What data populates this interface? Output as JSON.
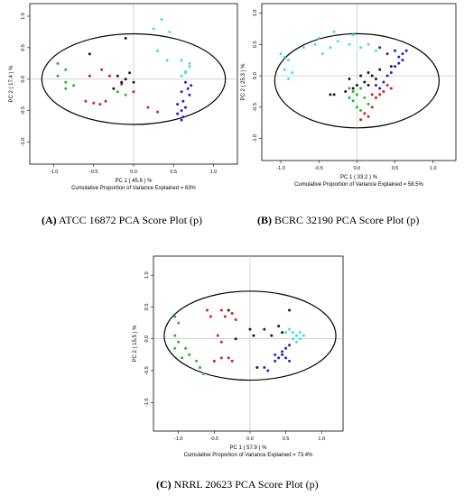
{
  "colors": {
    "black": "#1a1a1a",
    "red": "#e31a1c",
    "green": "#22bb22",
    "blue": "#2222cc",
    "cyan": "#44ddee"
  },
  "chart_data": [
    {
      "type": "scatter",
      "caption": {
        "letter": "(A)",
        "text": " ATCC 16872 PCA Score Plot (p)"
      },
      "xlabel": "PC 1  ( 45.6 ) %",
      "ylabel": "PC 2  ( 17.4 ) %",
      "variance_text": "Cumulative Proportion of Variance Explained = 63%",
      "xlim": [
        -1.3,
        1.3
      ],
      "ylim": [
        -1.35,
        1.2
      ],
      "xticks": [
        -1.0,
        -0.5,
        0.0,
        0.5,
        1.0
      ],
      "yticks": [
        -1.0,
        -0.5,
        0.0,
        0.5,
        1.0
      ],
      "ellipse": {
        "cx": 0.0,
        "cy": 0.0,
        "rx": 1.15,
        "ry": 0.72
      },
      "series": [
        {
          "color": "green",
          "points": [
            [
              -0.95,
              0.25
            ],
            [
              -0.85,
              0.15
            ],
            [
              -0.95,
              0.05
            ],
            [
              -0.85,
              -0.05
            ],
            [
              -0.75,
              -0.1
            ],
            [
              -0.85,
              -0.15
            ],
            [
              -0.2,
              -0.2
            ],
            [
              -0.1,
              -0.25
            ]
          ]
        },
        {
          "color": "red",
          "points": [
            [
              -0.6,
              -0.35
            ],
            [
              -0.5,
              -0.38
            ],
            [
              -0.42,
              -0.4
            ],
            [
              -0.35,
              -0.35
            ],
            [
              -0.4,
              0.15
            ],
            [
              -0.3,
              0.05
            ],
            [
              -0.15,
              -0.08
            ],
            [
              0.0,
              -0.2
            ],
            [
              0.18,
              -0.45
            ],
            [
              0.3,
              -0.52
            ],
            [
              -0.55,
              0.05
            ]
          ]
        },
        {
          "color": "black",
          "points": [
            [
              -0.55,
              0.4
            ],
            [
              -0.1,
              0.65
            ],
            [
              -0.1,
              0.0
            ],
            [
              -0.2,
              0.05
            ],
            [
              -0.15,
              -0.05
            ],
            [
              -0.05,
              0.1
            ],
            [
              0.0,
              -0.05
            ],
            [
              -0.25,
              -0.15
            ]
          ]
        },
        {
          "color": "cyan",
          "points": [
            [
              0.25,
              0.8
            ],
            [
              0.35,
              0.95
            ],
            [
              0.45,
              0.75
            ],
            [
              0.3,
              0.45
            ],
            [
              0.42,
              0.3
            ],
            [
              0.6,
              0.3
            ],
            [
              0.7,
              0.2
            ],
            [
              0.6,
              0.05
            ],
            [
              0.65,
              0.1
            ],
            [
              0.7,
              0.25
            ],
            [
              0.65,
              0.12
            ]
          ]
        },
        {
          "color": "blue",
          "points": [
            [
              0.65,
              -0.05
            ],
            [
              0.72,
              -0.1
            ],
            [
              0.68,
              -0.15
            ],
            [
              0.6,
              -0.2
            ],
            [
              0.7,
              -0.25
            ],
            [
              0.62,
              -0.35
            ],
            [
              0.55,
              -0.4
            ],
            [
              0.65,
              -0.45
            ],
            [
              0.6,
              -0.5
            ],
            [
              0.55,
              -0.55
            ],
            [
              0.62,
              -0.6
            ],
            [
              0.6,
              -0.65
            ]
          ]
        }
      ]
    },
    {
      "type": "scatter",
      "caption": {
        "letter": "(B)",
        "text": " BCRC 32190 PCA Score Plot (p)"
      },
      "xlabel": "PC 1  ( 33.2 ) %",
      "ylabel": "PC 2  ( 25.3 ) %",
      "variance_text": "Cumulative Proportion of Variance Explained = 58.5%",
      "xlim": [
        -1.25,
        1.3
      ],
      "ylim": [
        -1.35,
        1.15
      ],
      "xticks": [
        -1.0,
        -0.5,
        0.0,
        0.5,
        1.0
      ],
      "yticks": [
        -1.0,
        -0.5,
        0.0,
        0.5,
        1.0
      ],
      "ellipse": {
        "cx": 0.0,
        "cy": -0.08,
        "rx": 1.08,
        "ry": 0.75
      },
      "series": [
        {
          "color": "cyan",
          "points": [
            [
              -1.0,
              0.35
            ],
            [
              -0.95,
              0.3
            ],
            [
              -0.9,
              0.25
            ],
            [
              -0.95,
              0.1
            ],
            [
              -0.85,
              0.05
            ],
            [
              -0.9,
              -0.05
            ],
            [
              -0.7,
              0.45
            ],
            [
              -0.55,
              0.5
            ],
            [
              -0.45,
              0.35
            ],
            [
              -0.35,
              0.45
            ],
            [
              -0.25,
              0.55
            ],
            [
              -0.1,
              0.5
            ],
            [
              0.05,
              0.45
            ],
            [
              0.15,
              0.5
            ],
            [
              0.25,
              0.4
            ],
            [
              -0.5,
              0.6
            ],
            [
              -0.3,
              0.7
            ],
            [
              -0.05,
              0.65
            ]
          ]
        },
        {
          "color": "blue",
          "points": [
            [
              0.3,
              0.45
            ],
            [
              0.4,
              0.35
            ],
            [
              0.5,
              0.4
            ],
            [
              0.55,
              0.3
            ],
            [
              0.6,
              0.35
            ],
            [
              0.65,
              0.4
            ],
            [
              0.5,
              0.15
            ],
            [
              0.45,
              0.05
            ],
            [
              0.4,
              0.0
            ],
            [
              0.35,
              -0.1
            ],
            [
              0.3,
              -0.2
            ],
            [
              0.25,
              -0.15
            ],
            [
              0.55,
              0.2
            ],
            [
              0.6,
              0.25
            ]
          ]
        },
        {
          "color": "black",
          "points": [
            [
              -0.35,
              -0.3
            ],
            [
              -0.3,
              -0.3
            ],
            [
              -0.15,
              -0.25
            ],
            [
              -0.05,
              -0.2
            ],
            [
              0.0,
              -0.15
            ],
            [
              0.1,
              -0.1
            ],
            [
              0.15,
              -0.15
            ],
            [
              0.2,
              0.0
            ],
            [
              0.15,
              0.05
            ],
            [
              0.25,
              -0.05
            ],
            [
              -0.1,
              -0.05
            ],
            [
              0.05,
              0.0
            ],
            [
              0.3,
              0.1
            ],
            [
              0.45,
              0.15
            ]
          ]
        },
        {
          "color": "green",
          "points": [
            [
              -0.1,
              -0.35
            ],
            [
              -0.05,
              -0.4
            ],
            [
              0.0,
              -0.5
            ],
            [
              0.05,
              -0.55
            ],
            [
              0.0,
              -0.3
            ],
            [
              -0.05,
              -0.25
            ],
            [
              -0.1,
              -0.2
            ],
            [
              0.05,
              -0.2
            ],
            [
              0.1,
              -0.35
            ],
            [
              0.15,
              -0.45
            ]
          ]
        },
        {
          "color": "red",
          "points": [
            [
              0.1,
              -0.6
            ],
            [
              0.15,
              -0.65
            ],
            [
              0.2,
              -0.3
            ],
            [
              0.25,
              -0.35
            ],
            [
              0.3,
              -0.3
            ],
            [
              0.35,
              -0.25
            ],
            [
              0.4,
              -0.15
            ],
            [
              0.45,
              -0.2
            ],
            [
              0.05,
              -0.7
            ],
            [
              0.2,
              -0.5
            ]
          ]
        }
      ]
    },
    {
      "type": "scatter",
      "caption": {
        "letter": "(C)",
        "text": " NRRL 20623 PCA Score Plot (p)"
      },
      "xlabel": "PC 1  ( 57.9 ) %",
      "ylabel": "PC 2  ( 15.5 ) %",
      "variance_text": "Cumulative Proportion of Variance Explained = 73.4%",
      "xlim": [
        -1.35,
        1.3
      ],
      "ylim": [
        -1.45,
        1.3
      ],
      "xticks": [
        -1.0,
        -0.5,
        0.0,
        0.5,
        1.0
      ],
      "yticks": [
        -1.0,
        -0.5,
        0.0,
        0.5,
        1.0
      ],
      "ellipse": {
        "cx": 0.0,
        "cy": 0.05,
        "rx": 1.2,
        "ry": 0.7
      },
      "series": [
        {
          "color": "green",
          "points": [
            [
              -1.05,
              0.35
            ],
            [
              -1.0,
              0.25
            ],
            [
              -1.05,
              0.05
            ],
            [
              -1.0,
              -0.05
            ],
            [
              -1.05,
              -0.15
            ],
            [
              -0.9,
              -0.15
            ],
            [
              -0.85,
              -0.25
            ],
            [
              -0.95,
              -0.3
            ],
            [
              -0.75,
              -0.35
            ],
            [
              -0.7,
              -0.45
            ],
            [
              -0.65,
              -0.55
            ]
          ]
        },
        {
          "color": "red",
          "points": [
            [
              -0.6,
              0.45
            ],
            [
              -0.55,
              0.35
            ],
            [
              -0.4,
              0.45
            ],
            [
              -0.35,
              0.35
            ],
            [
              -0.25,
              0.4
            ],
            [
              -0.2,
              0.3
            ],
            [
              -0.45,
              0.05
            ],
            [
              -0.4,
              -0.05
            ],
            [
              -0.3,
              -0.3
            ],
            [
              -0.25,
              -0.35
            ],
            [
              -0.4,
              -0.3
            ],
            [
              -0.5,
              -0.35
            ]
          ]
        },
        {
          "color": "black",
          "points": [
            [
              -0.3,
              0.45
            ],
            [
              -0.2,
              0.0
            ],
            [
              0.0,
              0.15
            ],
            [
              0.05,
              0.05
            ],
            [
              0.2,
              0.15
            ],
            [
              0.3,
              0.05
            ],
            [
              0.4,
              0.2
            ],
            [
              0.45,
              0.1
            ],
            [
              0.55,
              0.45
            ],
            [
              0.1,
              -0.45
            ]
          ]
        },
        {
          "color": "cyan",
          "points": [
            [
              0.55,
              0.15
            ],
            [
              0.6,
              0.1
            ],
            [
              0.65,
              0.05
            ],
            [
              0.7,
              0.0
            ],
            [
              0.75,
              0.05
            ],
            [
              0.6,
              0.0
            ],
            [
              0.5,
              0.1
            ],
            [
              0.65,
              -0.05
            ],
            [
              0.7,
              0.1
            ]
          ]
        },
        {
          "color": "blue",
          "points": [
            [
              0.35,
              -0.25
            ],
            [
              0.4,
              -0.3
            ],
            [
              0.45,
              -0.25
            ],
            [
              0.5,
              -0.3
            ],
            [
              0.55,
              -0.35
            ],
            [
              0.5,
              -0.15
            ],
            [
              0.55,
              -0.1
            ],
            [
              0.45,
              -0.2
            ],
            [
              0.35,
              -0.35
            ],
            [
              0.2,
              -0.45
            ],
            [
              0.25,
              -0.5
            ]
          ]
        }
      ]
    }
  ]
}
